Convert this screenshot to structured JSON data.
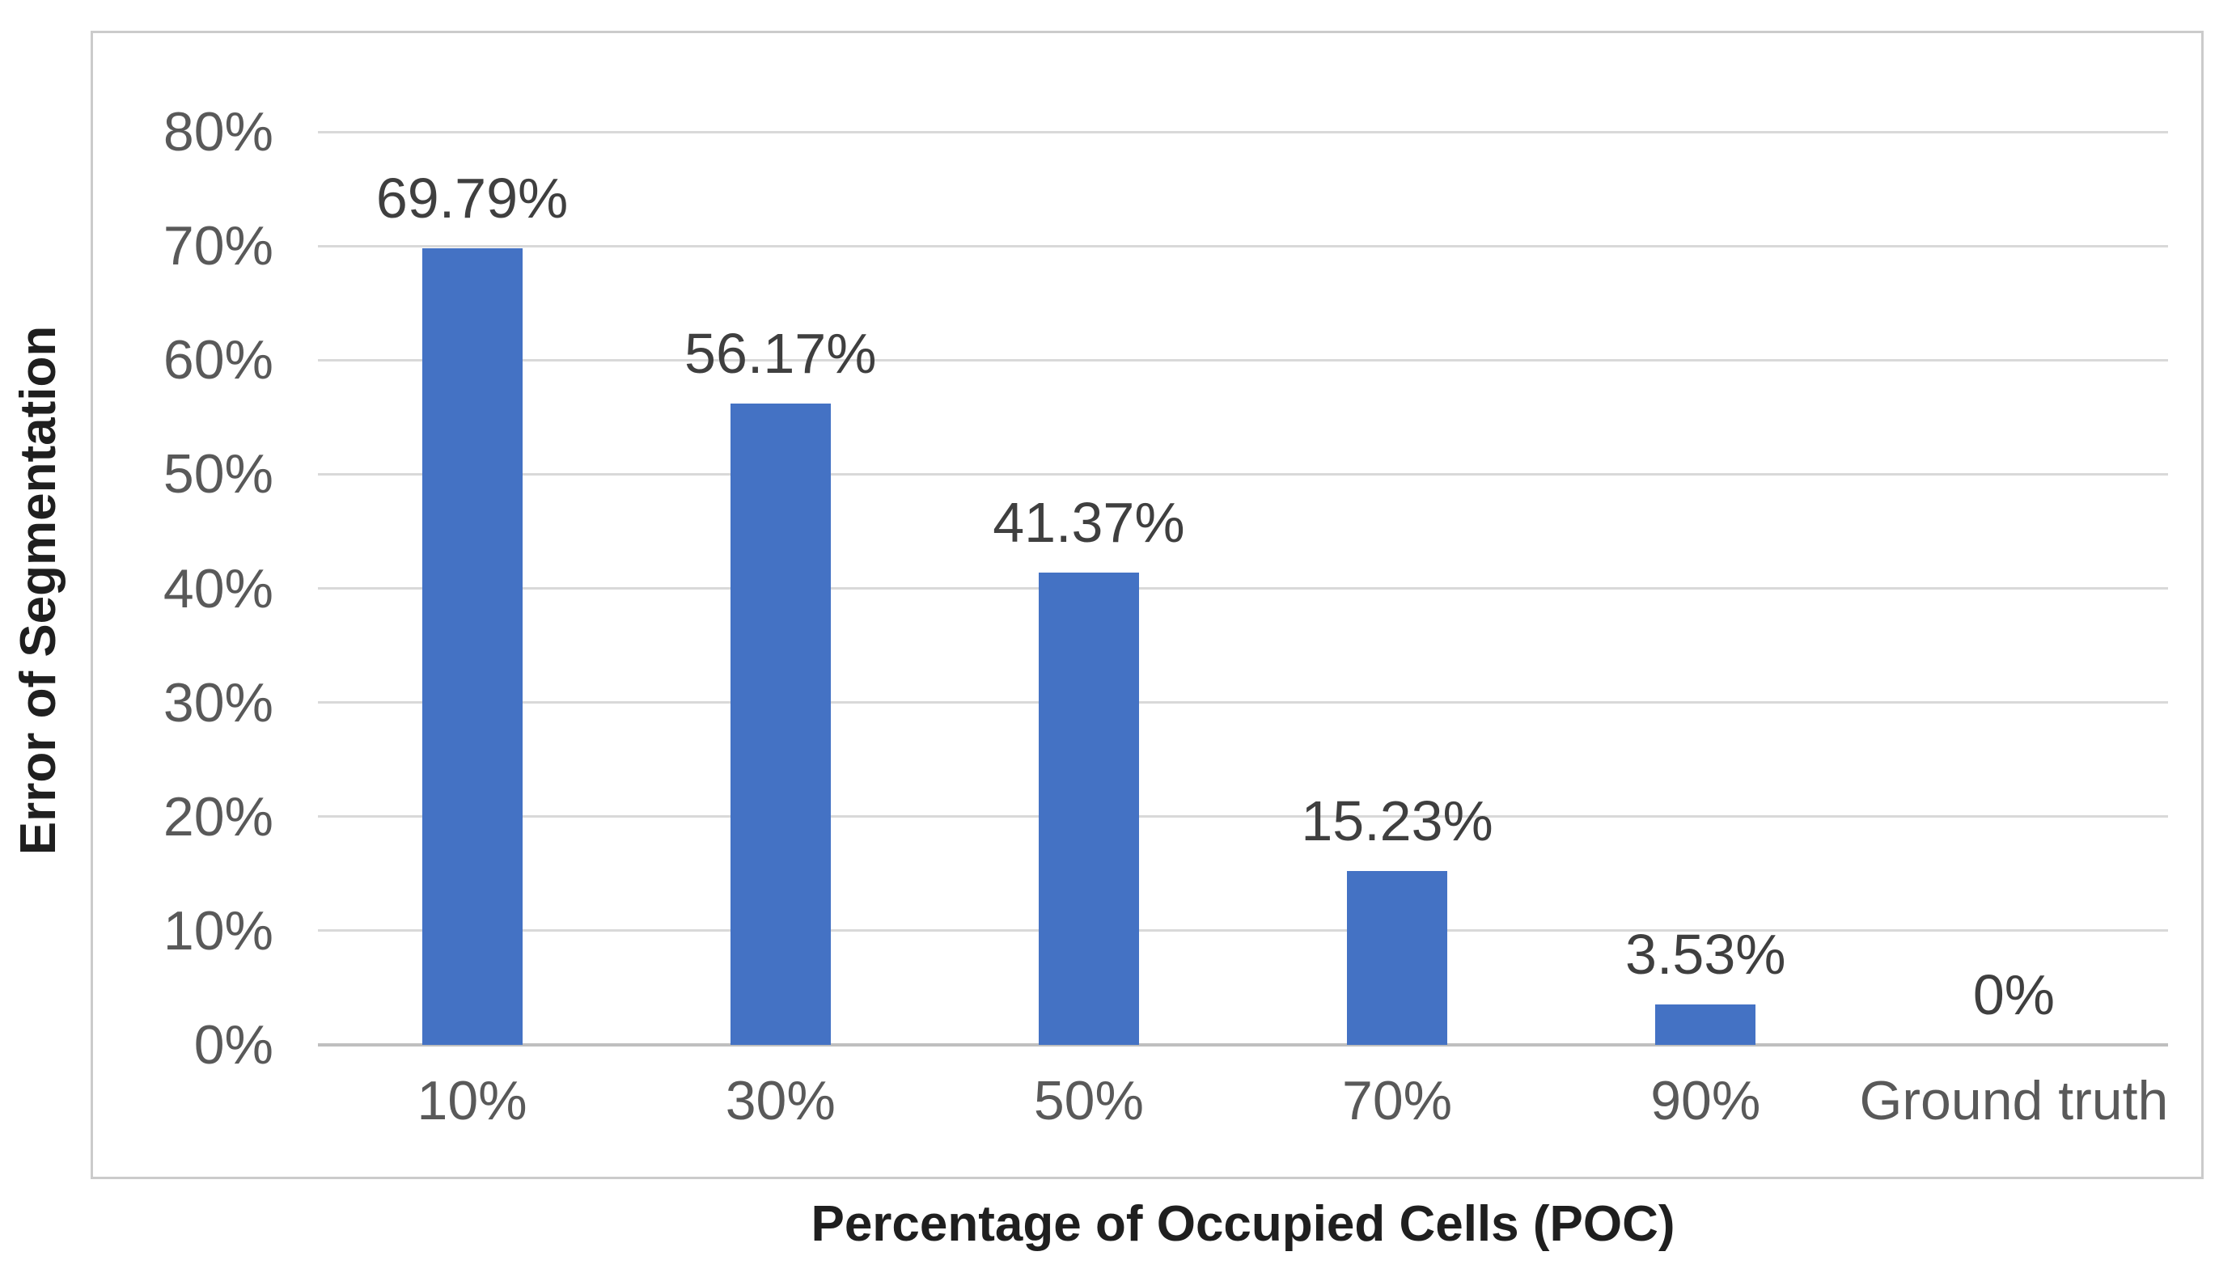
{
  "chart_data": {
    "type": "bar",
    "categories": [
      "10%",
      "30%",
      "50%",
      "70%",
      "90%",
      "Ground truth"
    ],
    "values": [
      69.79,
      56.17,
      41.37,
      15.23,
      3.53,
      0
    ],
    "bar_labels": [
      "69.79%",
      "56.17%",
      "41.37%",
      "15.23%",
      "3.53%",
      "0%"
    ],
    "title": "",
    "xlabel": "Percentage of Occupied Cells (POC)",
    "ylabel": "Error of Segmentation",
    "ylim": [
      0,
      80
    ],
    "ytick_step": 10,
    "yticks": [
      "0%",
      "10%",
      "20%",
      "30%",
      "40%",
      "50%",
      "60%",
      "70%",
      "80%"
    ],
    "grid": true,
    "legend": false,
    "bar_color": "#4472C4",
    "gridline_color": "#D9D9D9",
    "baseline_color": "#BFBFBF",
    "frame_border_color": "#CBCBCB",
    "tick_label_color": "#595959",
    "data_label_color": "#3F3F3F",
    "axis_title_color": "#1F1F1F"
  }
}
